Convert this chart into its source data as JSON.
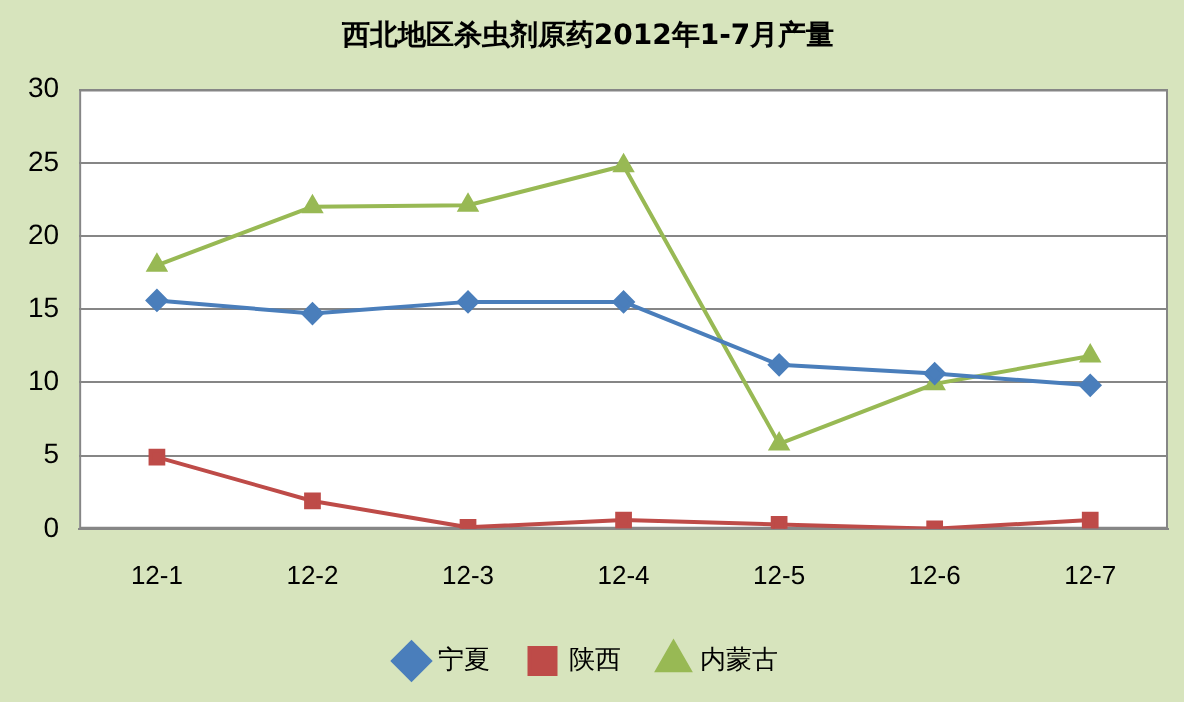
{
  "chart_data": {
    "type": "line",
    "title": "西北地区杀虫剂原药2012年1-7月产量",
    "categories": [
      "12-1",
      "12-2",
      "12-3",
      "12-4",
      "12-5",
      "12-6",
      "12-7"
    ],
    "series": [
      {
        "name": "宁夏",
        "color": "#4a7ebb",
        "marker": "diamond",
        "values": [
          15.6,
          14.7,
          15.5,
          15.5,
          11.2,
          10.6,
          9.8
        ]
      },
      {
        "name": "陕西",
        "color": "#be4b48",
        "marker": "square",
        "values": [
          4.9,
          1.9,
          0.1,
          0.6,
          0.3,
          0.0,
          0.6
        ]
      },
      {
        "name": "内蒙古",
        "color": "#98b954",
        "marker": "triangle",
        "values": [
          18,
          22,
          22.1,
          24.8,
          5.8,
          9.9,
          11.8
        ]
      }
    ],
    "ylim": [
      0,
      30
    ],
    "yticks": [
      0,
      5,
      10,
      15,
      20,
      25,
      30
    ],
    "grid": "y",
    "legend": "bottom"
  }
}
